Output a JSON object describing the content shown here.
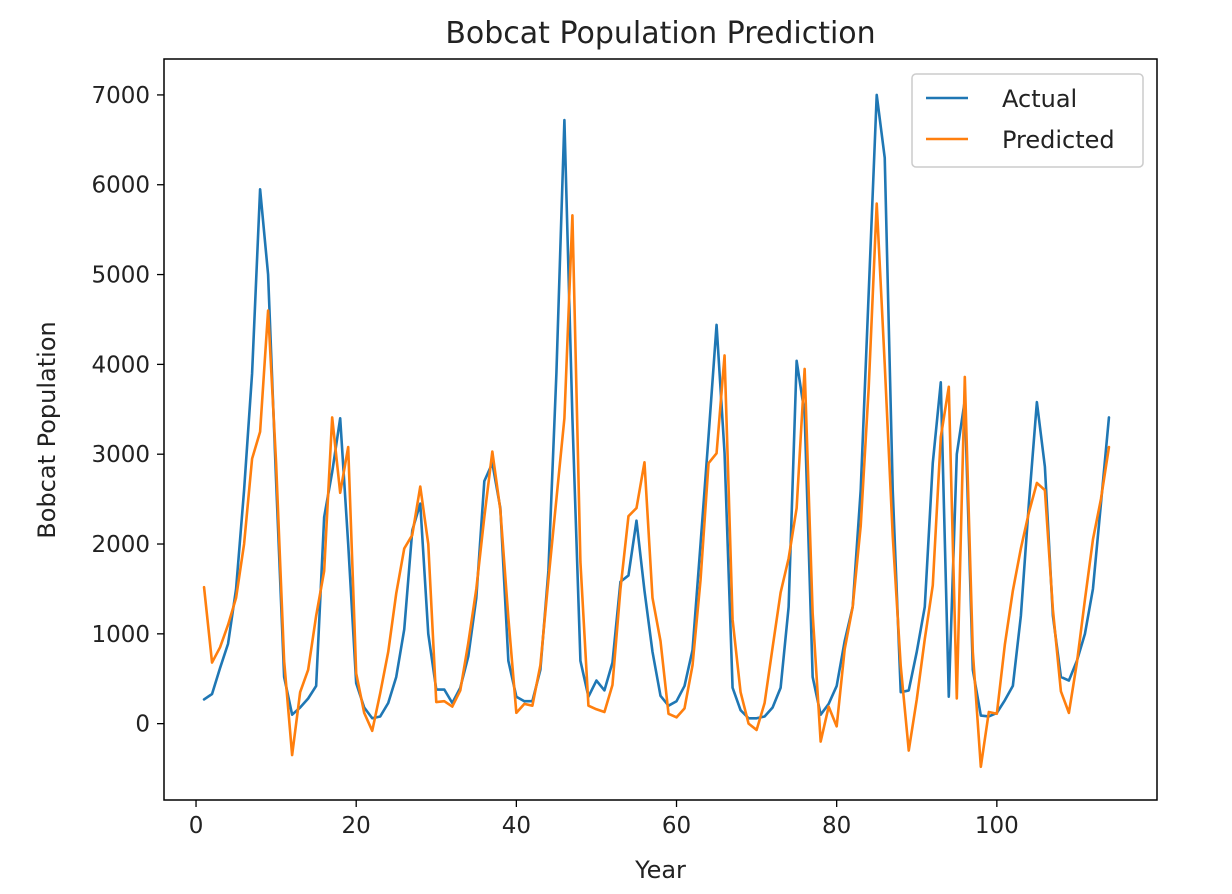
{
  "chart_data": {
    "type": "line",
    "title": "Bobcat Population Prediction",
    "xlabel": "Year",
    "ylabel": "Bobcat Population",
    "xlim": [
      -4,
      120
    ],
    "ylim": [
      -850,
      7400
    ],
    "xticks": [
      0,
      20,
      40,
      60,
      80,
      100
    ],
    "yticks": [
      0,
      1000,
      2000,
      3000,
      4000,
      5000,
      6000,
      7000
    ],
    "grid": false,
    "legend_position": "top-right",
    "x": [
      1,
      2,
      3,
      4,
      5,
      6,
      7,
      8,
      9,
      10,
      11,
      12,
      13,
      14,
      15,
      16,
      17,
      18,
      19,
      20,
      21,
      22,
      23,
      24,
      25,
      26,
      27,
      28,
      29,
      30,
      31,
      32,
      33,
      34,
      35,
      36,
      37,
      38,
      39,
      40,
      41,
      42,
      43,
      44,
      45,
      46,
      47,
      48,
      49,
      50,
      51,
      52,
      53,
      54,
      55,
      56,
      57,
      58,
      59,
      60,
      61,
      62,
      63,
      64,
      65,
      66,
      67,
      68,
      69,
      70,
      71,
      72,
      73,
      74,
      75,
      76,
      77,
      78,
      79,
      80,
      81,
      82,
      83,
      84,
      85,
      86,
      87,
      88,
      89,
      90,
      91,
      92,
      93,
      94,
      95,
      96,
      97,
      98,
      99,
      100,
      101,
      102,
      103,
      104,
      105,
      106,
      107,
      108,
      109,
      110,
      111,
      112,
      113,
      114
    ],
    "series": [
      {
        "name": "Actual",
        "color": "#1f77b4",
        "values": [
          270,
          330,
          620,
          890,
          1500,
          2600,
          3900,
          5950,
          5000,
          2700,
          520,
          100,
          180,
          280,
          420,
          2300,
          2800,
          3400,
          2000,
          450,
          180,
          60,
          80,
          230,
          520,
          1050,
          2150,
          2450,
          1000,
          380,
          380,
          230,
          400,
          750,
          1400,
          2700,
          2900,
          2400,
          700,
          300,
          250,
          250,
          600,
          1700,
          3900,
          6720,
          3400,
          700,
          300,
          480,
          370,
          680,
          1580,
          1650,
          2260,
          1480,
          800,
          310,
          200,
          250,
          420,
          820,
          2000,
          3200,
          4440,
          3010,
          400,
          150,
          60,
          60,
          80,
          180,
          400,
          1300,
          4040,
          3450,
          520,
          100,
          220,
          420,
          920,
          1300,
          2600,
          4800,
          7000,
          6300,
          2600,
          350,
          370,
          800,
          1300,
          2900,
          3800,
          300,
          3000,
          3600,
          600,
          90,
          80,
          120,
          260,
          420,
          1200,
          2450,
          3580,
          2860,
          1200,
          520,
          480,
          700,
          1000,
          1500,
          2450,
          3410
        ]
      },
      {
        "name": "Predicted",
        "color": "#ff7f0e",
        "values": [
          1520,
          680,
          850,
          1100,
          1400,
          2000,
          2950,
          3250,
          4600,
          2900,
          700,
          -350,
          350,
          600,
          1200,
          1700,
          3410,
          2570,
          3080,
          560,
          120,
          -80,
          340,
          800,
          1450,
          1950,
          2100,
          2640,
          2000,
          240,
          250,
          190,
          370,
          900,
          1500,
          2300,
          3030,
          2380,
          1180,
          120,
          220,
          200,
          650,
          1600,
          2500,
          3400,
          5660,
          1800,
          200,
          160,
          130,
          430,
          1500,
          2310,
          2400,
          2910,
          1400,
          920,
          110,
          70,
          170,
          650,
          1600,
          2900,
          3010,
          4100,
          1160,
          350,
          0,
          -70,
          230,
          850,
          1460,
          1840,
          2400,
          3950,
          1230,
          -200,
          190,
          -30,
          830,
          1300,
          2200,
          3740,
          5790,
          4000,
          2090,
          640,
          -300,
          270,
          940,
          1540,
          3190,
          3750,
          280,
          3860,
          800,
          -480,
          130,
          110,
          880,
          1480,
          1950,
          2350,
          2680,
          2600,
          1270,
          360,
          120,
          680,
          1380,
          2050,
          2500,
          3080
        ]
      }
    ]
  }
}
